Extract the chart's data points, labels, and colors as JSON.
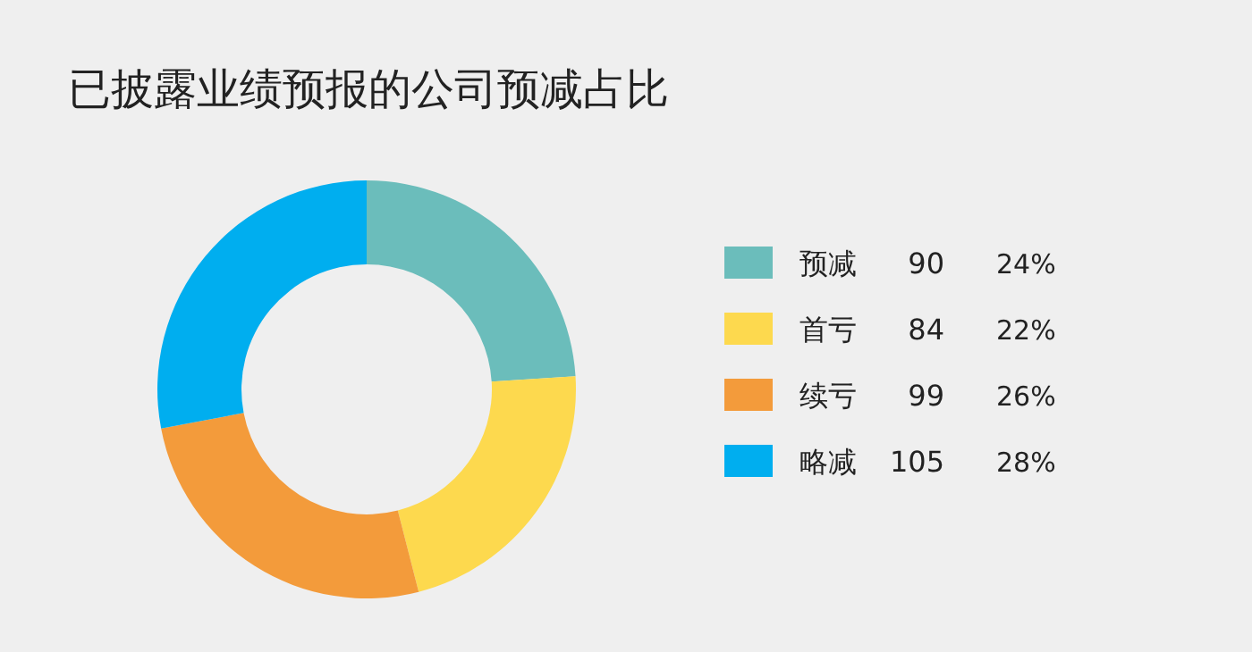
{
  "chart_data": {
    "type": "donut",
    "title": "已披露业绩预报的公司预减占比",
    "categories": [
      "预减",
      "首亏",
      "续亏",
      "略减"
    ],
    "values": [
      24,
      22,
      26,
      28
    ],
    "colors": [
      "#6bbdbb",
      "#fdd94e",
      "#f39b3b",
      "#00aeef"
    ],
    "value_labels": [
      "24%",
      "22%",
      "26%",
      "28%"
    ],
    "annotations": [
      "90",
      "84",
      "99",
      "105"
    ],
    "legend": "right"
  }
}
